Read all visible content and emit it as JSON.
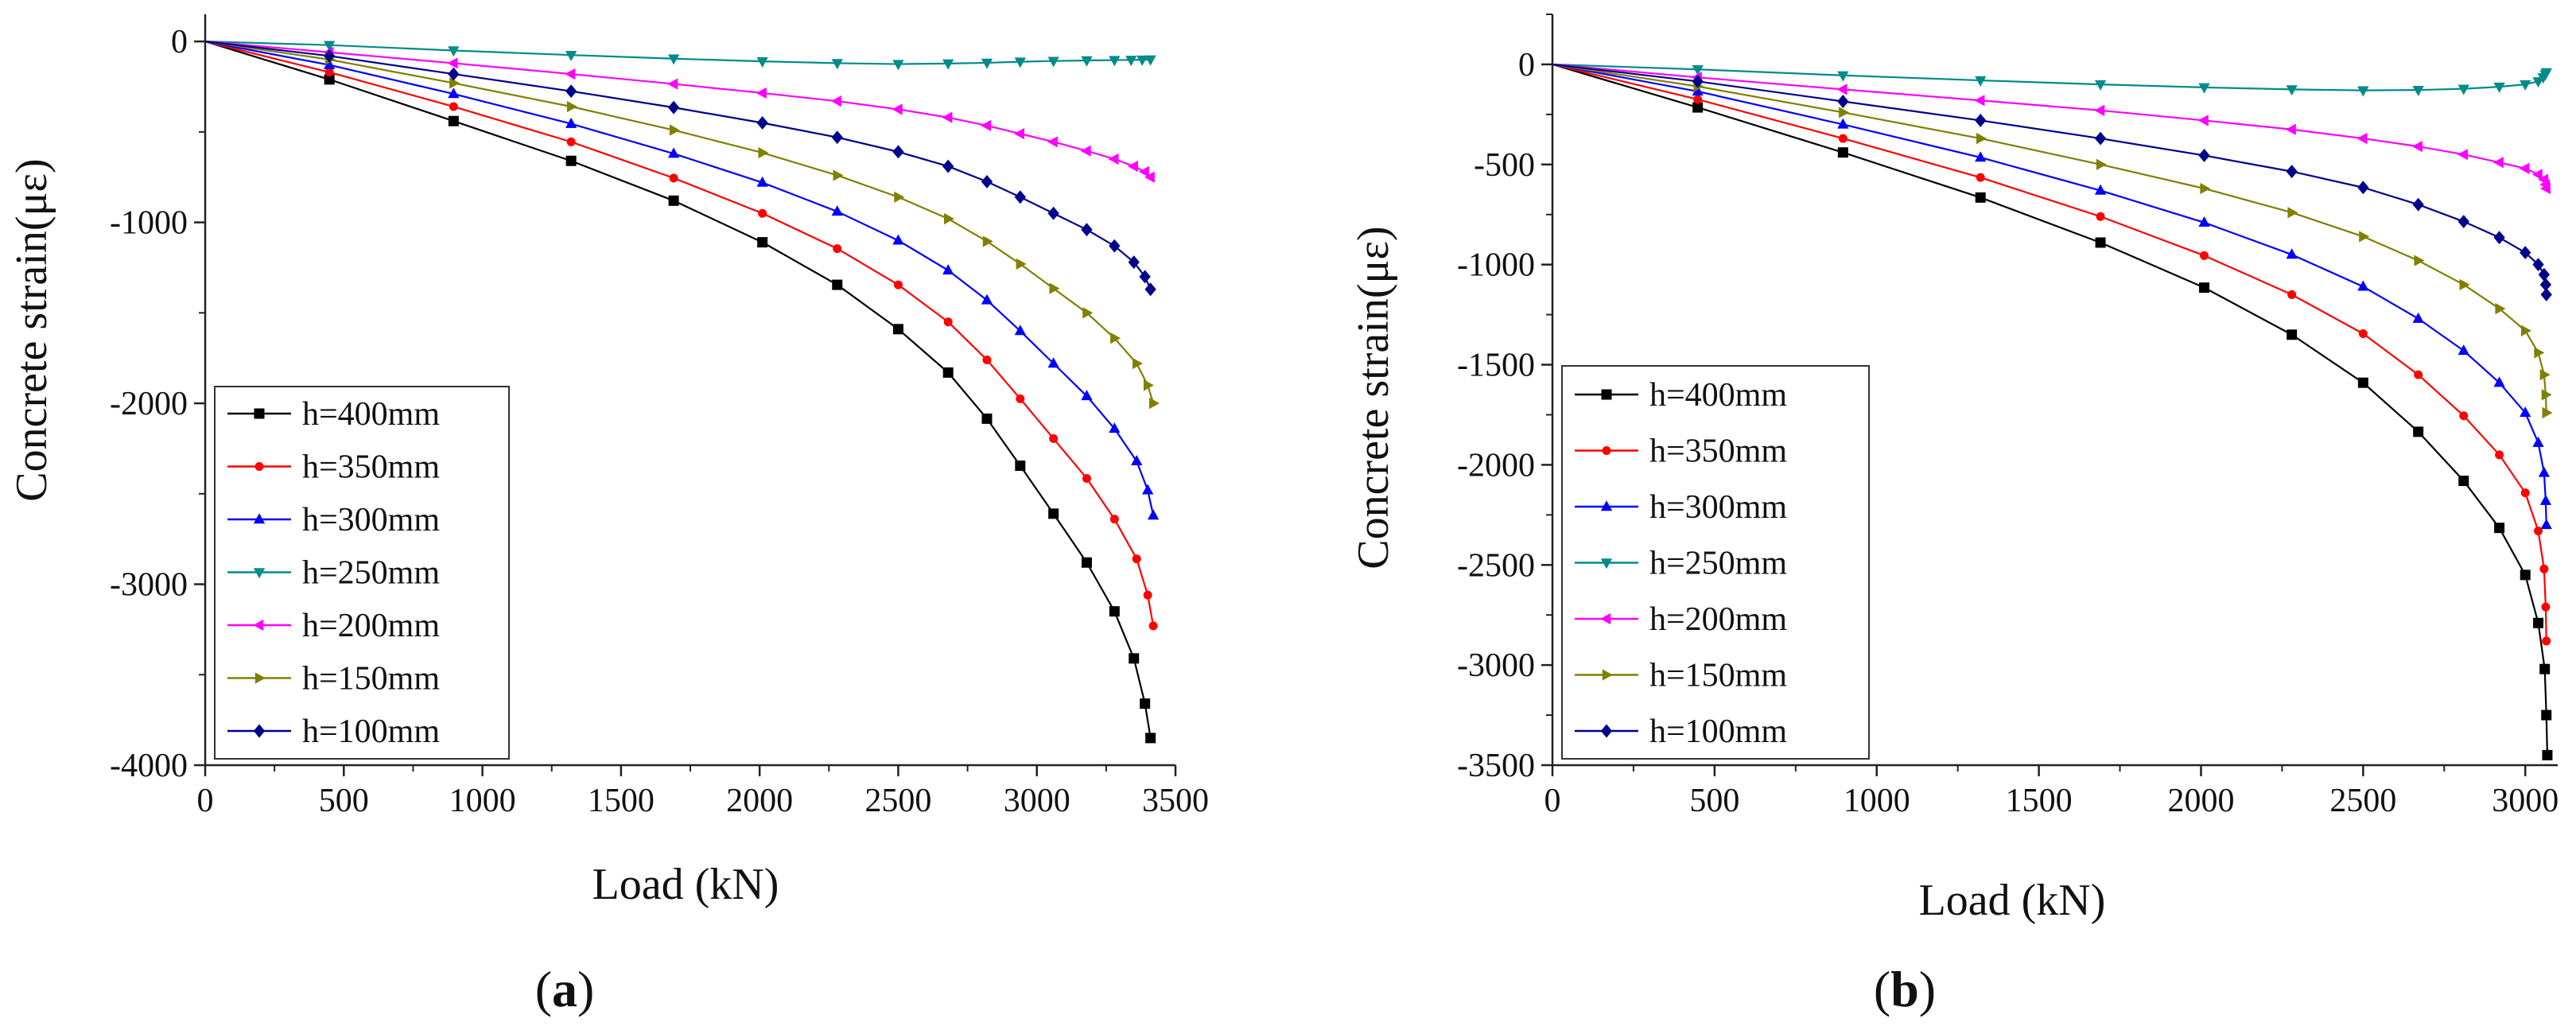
{
  "panels": [
    {
      "label_open": "(",
      "label_letter": "a",
      "label_close": ")"
    },
    {
      "label_open": "(",
      "label_letter": "b",
      "label_close": ")"
    }
  ],
  "chart_data": [
    {
      "type": "line",
      "xlabel": "Load (kN)",
      "ylabel": "Concrete strain(με)",
      "xlim": [
        0,
        3500
      ],
      "ylim": [
        -4000,
        150
      ],
      "xticks": [
        0,
        500,
        1000,
        1500,
        2000,
        2500,
        3000,
        3500
      ],
      "yticks": [
        0,
        -1000,
        -2000,
        -3000,
        -4000
      ],
      "legend_position": "lower-left",
      "series": [
        {
          "name": "h=400mm",
          "color": "#000000",
          "marker": "square",
          "points": [
            [
              0,
              0
            ],
            [
              448,
              -210
            ],
            [
              896,
              -440
            ],
            [
              1320,
              -660
            ],
            [
              1690,
              -880
            ],
            [
              2010,
              -1110
            ],
            [
              2280,
              -1345
            ],
            [
              2500,
              -1590
            ],
            [
              2680,
              -1830
            ],
            [
              2820,
              -2085
            ],
            [
              2940,
              -2345
            ],
            [
              3060,
              -2610
            ],
            [
              3180,
              -2880
            ],
            [
              3280,
              -3150
            ],
            [
              3350,
              -3410
            ],
            [
              3390,
              -3660
            ],
            [
              3410,
              -3850
            ]
          ]
        },
        {
          "name": "h=350mm",
          "color": "#ff0000",
          "marker": "circle",
          "points": [
            [
              0,
              0
            ],
            [
              448,
              -170
            ],
            [
              896,
              -360
            ],
            [
              1320,
              -555
            ],
            [
              1690,
              -755
            ],
            [
              2010,
              -950
            ],
            [
              2280,
              -1145
            ],
            [
              2500,
              -1345
            ],
            [
              2680,
              -1550
            ],
            [
              2820,
              -1760
            ],
            [
              2940,
              -1975
            ],
            [
              3060,
              -2195
            ],
            [
              3180,
              -2415
            ],
            [
              3280,
              -2640
            ],
            [
              3360,
              -2860
            ],
            [
              3400,
              -3060
            ],
            [
              3420,
              -3230
            ]
          ]
        },
        {
          "name": "h=300mm",
          "color": "#0000ff",
          "marker": "triangle-up",
          "points": [
            [
              0,
              0
            ],
            [
              448,
              -130
            ],
            [
              896,
              -290
            ],
            [
              1320,
              -455
            ],
            [
              1690,
              -620
            ],
            [
              2010,
              -780
            ],
            [
              2280,
              -940
            ],
            [
              2500,
              -1100
            ],
            [
              2680,
              -1265
            ],
            [
              2820,
              -1430
            ],
            [
              2940,
              -1600
            ],
            [
              3060,
              -1780
            ],
            [
              3180,
              -1960
            ],
            [
              3280,
              -2140
            ],
            [
              3360,
              -2320
            ],
            [
              3400,
              -2480
            ],
            [
              3420,
              -2620
            ]
          ]
        },
        {
          "name": "h=250mm",
          "color": "#008b8b",
          "marker": "triangle-down",
          "points": [
            [
              0,
              0
            ],
            [
              448,
              -20
            ],
            [
              896,
              -50
            ],
            [
              1320,
              -75
            ],
            [
              1690,
              -95
            ],
            [
              2010,
              -110
            ],
            [
              2280,
              -120
            ],
            [
              2500,
              -125
            ],
            [
              2680,
              -122
            ],
            [
              2820,
              -118
            ],
            [
              2940,
              -112
            ],
            [
              3060,
              -108
            ],
            [
              3180,
              -105
            ],
            [
              3280,
              -103
            ],
            [
              3340,
              -102
            ],
            [
              3380,
              -101
            ],
            [
              3410,
              -100
            ]
          ]
        },
        {
          "name": "h=200mm",
          "color": "#ff00ff",
          "marker": "triangle-left",
          "points": [
            [
              0,
              0
            ],
            [
              448,
              -60
            ],
            [
              896,
              -120
            ],
            [
              1320,
              -180
            ],
            [
              1690,
              -235
            ],
            [
              2010,
              -285
            ],
            [
              2280,
              -330
            ],
            [
              2500,
              -375
            ],
            [
              2680,
              -420
            ],
            [
              2820,
              -465
            ],
            [
              2940,
              -510
            ],
            [
              3060,
              -555
            ],
            [
              3180,
              -605
            ],
            [
              3280,
              -650
            ],
            [
              3350,
              -690
            ],
            [
              3390,
              -720
            ],
            [
              3410,
              -750
            ]
          ]
        },
        {
          "name": "h=150mm",
          "color": "#808000",
          "marker": "triangle-right",
          "points": [
            [
              0,
              0
            ],
            [
              448,
              -100
            ],
            [
              896,
              -230
            ],
            [
              1320,
              -360
            ],
            [
              1690,
              -490
            ],
            [
              2010,
              -615
            ],
            [
              2280,
              -740
            ],
            [
              2500,
              -860
            ],
            [
              2680,
              -980
            ],
            [
              2820,
              -1105
            ],
            [
              2940,
              -1230
            ],
            [
              3060,
              -1365
            ],
            [
              3180,
              -1500
            ],
            [
              3280,
              -1640
            ],
            [
              3360,
              -1780
            ],
            [
              3400,
              -1900
            ],
            [
              3420,
              -2000
            ]
          ]
        },
        {
          "name": "h=100mm",
          "color": "#00008b",
          "marker": "diamond",
          "points": [
            [
              0,
              0
            ],
            [
              448,
              -80
            ],
            [
              896,
              -180
            ],
            [
              1320,
              -275
            ],
            [
              1690,
              -365
            ],
            [
              2010,
              -450
            ],
            [
              2280,
              -530
            ],
            [
              2500,
              -610
            ],
            [
              2680,
              -690
            ],
            [
              2820,
              -775
            ],
            [
              2940,
              -860
            ],
            [
              3060,
              -950
            ],
            [
              3180,
              -1040
            ],
            [
              3280,
              -1130
            ],
            [
              3350,
              -1220
            ],
            [
              3390,
              -1300
            ],
            [
              3410,
              -1370
            ]
          ]
        }
      ]
    },
    {
      "type": "line",
      "xlabel": "Load (kN)",
      "ylabel": "Concrete strain(με)",
      "xlim": [
        0,
        3100
      ],
      "ylim": [
        -3500,
        250
      ],
      "xticks": [
        0,
        500,
        1000,
        1500,
        2000,
        2500,
        3000
      ],
      "yticks": [
        0,
        -500,
        -1000,
        -1500,
        -2000,
        -2500,
        -3000,
        -3500
      ],
      "legend_position": "lower-left",
      "series": [
        {
          "name": "h=400mm",
          "color": "#000000",
          "marker": "square",
          "points": [
            [
              0,
              0
            ],
            [
              448,
              -215
            ],
            [
              896,
              -440
            ],
            [
              1320,
              -665
            ],
            [
              1690,
              -890
            ],
            [
              2010,
              -1115
            ],
            [
              2280,
              -1350
            ],
            [
              2500,
              -1590
            ],
            [
              2670,
              -1835
            ],
            [
              2810,
              -2080
            ],
            [
              2920,
              -2315
            ],
            [
              3000,
              -2550
            ],
            [
              3040,
              -2790
            ],
            [
              3060,
              -3020
            ],
            [
              3065,
              -3250
            ],
            [
              3068,
              -3450
            ]
          ]
        },
        {
          "name": "h=350mm",
          "color": "#ff0000",
          "marker": "circle",
          "points": [
            [
              0,
              0
            ],
            [
              448,
              -175
            ],
            [
              896,
              -370
            ],
            [
              1320,
              -565
            ],
            [
              1690,
              -760
            ],
            [
              2010,
              -955
            ],
            [
              2280,
              -1150
            ],
            [
              2500,
              -1345
            ],
            [
              2670,
              -1550
            ],
            [
              2810,
              -1755
            ],
            [
              2920,
              -1950
            ],
            [
              3000,
              -2140
            ],
            [
              3040,
              -2330
            ],
            [
              3058,
              -2520
            ],
            [
              3063,
              -2710
            ],
            [
              3065,
              -2880
            ]
          ]
        },
        {
          "name": "h=300mm",
          "color": "#0000ff",
          "marker": "triangle-up",
          "points": [
            [
              0,
              0
            ],
            [
              448,
              -135
            ],
            [
              896,
              -300
            ],
            [
              1320,
              -465
            ],
            [
              1690,
              -630
            ],
            [
              2010,
              -790
            ],
            [
              2280,
              -950
            ],
            [
              2500,
              -1110
            ],
            [
              2670,
              -1270
            ],
            [
              2810,
              -1430
            ],
            [
              2920,
              -1590
            ],
            [
              3000,
              -1740
            ],
            [
              3040,
              -1890
            ],
            [
              3058,
              -2040
            ],
            [
              3063,
              -2180
            ],
            [
              3065,
              -2300
            ]
          ]
        },
        {
          "name": "h=250mm",
          "color": "#008b8b",
          "marker": "triangle-down",
          "points": [
            [
              0,
              0
            ],
            [
              448,
              -25
            ],
            [
              896,
              -55
            ],
            [
              1320,
              -80
            ],
            [
              1690,
              -100
            ],
            [
              2010,
              -115
            ],
            [
              2280,
              -125
            ],
            [
              2500,
              -130
            ],
            [
              2670,
              -128
            ],
            [
              2810,
              -122
            ],
            [
              2920,
              -112
            ],
            [
              3000,
              -100
            ],
            [
              3040,
              -85
            ],
            [
              3055,
              -65
            ],
            [
              3062,
              -50
            ],
            [
              3065,
              -40
            ]
          ]
        },
        {
          "name": "h=200mm",
          "color": "#ff00ff",
          "marker": "triangle-left",
          "points": [
            [
              0,
              0
            ],
            [
              448,
              -65
            ],
            [
              896,
              -125
            ],
            [
              1320,
              -180
            ],
            [
              1690,
              -230
            ],
            [
              2010,
              -280
            ],
            [
              2280,
              -325
            ],
            [
              2500,
              -370
            ],
            [
              2670,
              -410
            ],
            [
              2810,
              -450
            ],
            [
              2920,
              -490
            ],
            [
              3000,
              -520
            ],
            [
              3040,
              -550
            ],
            [
              3058,
              -575
            ],
            [
              3063,
              -600
            ],
            [
              3065,
              -620
            ]
          ]
        },
        {
          "name": "h=150mm",
          "color": "#808000",
          "marker": "triangle-right",
          "points": [
            [
              0,
              0
            ],
            [
              448,
              -110
            ],
            [
              896,
              -240
            ],
            [
              1320,
              -370
            ],
            [
              1690,
              -500
            ],
            [
              2010,
              -620
            ],
            [
              2280,
              -740
            ],
            [
              2500,
              -860
            ],
            [
              2670,
              -980
            ],
            [
              2810,
              -1100
            ],
            [
              2920,
              -1220
            ],
            [
              3000,
              -1330
            ],
            [
              3040,
              -1440
            ],
            [
              3058,
              -1550
            ],
            [
              3063,
              -1650
            ],
            [
              3065,
              -1740
            ]
          ]
        },
        {
          "name": "h=100mm",
          "color": "#00008b",
          "marker": "diamond",
          "points": [
            [
              0,
              0
            ],
            [
              448,
              -85
            ],
            [
              896,
              -185
            ],
            [
              1320,
              -280
            ],
            [
              1690,
              -370
            ],
            [
              2010,
              -455
            ],
            [
              2280,
              -535
            ],
            [
              2500,
              -615
            ],
            [
              2670,
              -700
            ],
            [
              2810,
              -785
            ],
            [
              2920,
              -865
            ],
            [
              3000,
              -940
            ],
            [
              3040,
              -1000
            ],
            [
              3058,
              -1050
            ],
            [
              3063,
              -1100
            ],
            [
              3065,
              -1150
            ]
          ]
        }
      ]
    }
  ]
}
